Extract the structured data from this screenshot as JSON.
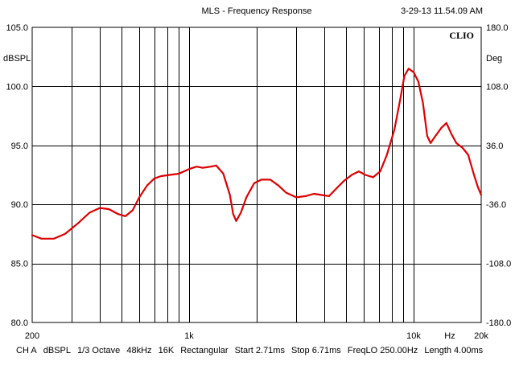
{
  "title": "MLS - Frequency Response",
  "timestamp": "3-29-13 11.54.09 AM",
  "brand": "CLIO",
  "footer": {
    "channel": "CH A",
    "unit": "dBSPL",
    "smoothing": "1/3 Octave",
    "sample_rate": "48kHz",
    "size": "16K",
    "window": "Rectangular",
    "start": "Start 2.71ms",
    "stop": "Stop 6.71ms",
    "freqlo": "FreqLO 250.00Hz",
    "length": "Length 4.00ms"
  },
  "chart_data": {
    "type": "line",
    "title": "MLS - Frequency Response",
    "xlabel": "Hz",
    "ylabel": "dBSPL",
    "y2label": "Deg",
    "x_scale": "log",
    "xlim": [
      200,
      20000
    ],
    "ylim": [
      80,
      105
    ],
    "y2lim": [
      -180,
      180
    ],
    "grid": true,
    "x_tick_labels": [
      {
        "value": 200,
        "label": "200"
      },
      {
        "value": 1000,
        "label": "1k"
      },
      {
        "value": 10000,
        "label": "10k"
      },
      {
        "value": 14500,
        "label": "Hz"
      },
      {
        "value": 20000,
        "label": "20k"
      }
    ],
    "y_tick_labels": [
      "80.0",
      "85.0",
      "90.0",
      "95.0",
      "100.0",
      "105.0"
    ],
    "y2_tick_labels": [
      "-180.0",
      "-108.0",
      "-36.0",
      "36.0",
      "108.0",
      "180.0"
    ],
    "series": [
      {
        "color": "#dd0000",
        "points": [
          [
            200,
            87.4
          ],
          [
            220,
            87.1
          ],
          [
            250,
            87.1
          ],
          [
            280,
            87.5
          ],
          [
            320,
            88.4
          ],
          [
            360,
            89.3
          ],
          [
            400,
            89.7
          ],
          [
            440,
            89.6
          ],
          [
            480,
            89.2
          ],
          [
            520,
            89.0
          ],
          [
            560,
            89.5
          ],
          [
            600,
            90.6
          ],
          [
            650,
            91.6
          ],
          [
            700,
            92.2
          ],
          [
            750,
            92.4
          ],
          [
            820,
            92.5
          ],
          [
            900,
            92.6
          ],
          [
            1000,
            93.0
          ],
          [
            1080,
            93.2
          ],
          [
            1150,
            93.1
          ],
          [
            1250,
            93.2
          ],
          [
            1320,
            93.3
          ],
          [
            1420,
            92.6
          ],
          [
            1520,
            90.8
          ],
          [
            1570,
            89.2
          ],
          [
            1620,
            88.6
          ],
          [
            1700,
            89.3
          ],
          [
            1800,
            90.6
          ],
          [
            1950,
            91.8
          ],
          [
            2100,
            92.1
          ],
          [
            2300,
            92.1
          ],
          [
            2500,
            91.6
          ],
          [
            2700,
            91.0
          ],
          [
            3000,
            90.6
          ],
          [
            3300,
            90.7
          ],
          [
            3600,
            90.9
          ],
          [
            3900,
            90.8
          ],
          [
            4200,
            90.7
          ],
          [
            4500,
            91.3
          ],
          [
            4900,
            92.0
          ],
          [
            5300,
            92.5
          ],
          [
            5700,
            92.8
          ],
          [
            6100,
            92.5
          ],
          [
            6600,
            92.3
          ],
          [
            7100,
            92.8
          ],
          [
            7600,
            94.2
          ],
          [
            8200,
            96.3
          ],
          [
            8700,
            98.8
          ],
          [
            9100,
            100.9
          ],
          [
            9500,
            101.5
          ],
          [
            10000,
            101.2
          ],
          [
            10500,
            100.4
          ],
          [
            11000,
            98.6
          ],
          [
            11500,
            95.8
          ],
          [
            11900,
            95.2
          ],
          [
            12500,
            95.8
          ],
          [
            13300,
            96.5
          ],
          [
            14000,
            96.9
          ],
          [
            14700,
            96.0
          ],
          [
            15500,
            95.2
          ],
          [
            16500,
            94.8
          ],
          [
            17500,
            94.2
          ],
          [
            18500,
            92.6
          ],
          [
            19300,
            91.5
          ],
          [
            20000,
            90.8
          ]
        ]
      }
    ]
  }
}
